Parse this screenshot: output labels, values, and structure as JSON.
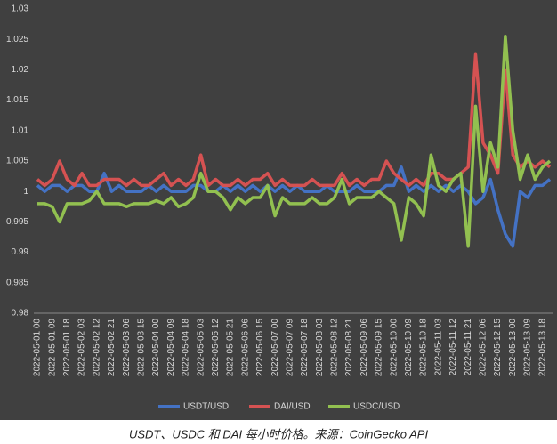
{
  "chart_data": {
    "type": "line",
    "caption": "USDT、USDC 和 DAI 每小时价格。来源：CoinGecko API",
    "categories": [
      "2022-05-01 00",
      null,
      "2022-05-01 09",
      null,
      "2022-05-01 18",
      null,
      "2022-05-02 03",
      null,
      "2022-05-02 12",
      null,
      "2022-05-02 21",
      null,
      "2022-05-03 06",
      null,
      "2022-05-03 15",
      null,
      "2022-05-04 00",
      null,
      "2022-05-04 09",
      null,
      "2022-05-04 18",
      null,
      "2022-05-05 03",
      null,
      "2022-05-05 12",
      null,
      "2022-05-05 21",
      null,
      "2022-05-06 06",
      null,
      "2022-05-06 15",
      null,
      "2022-05-07 00",
      null,
      "2022-05-07 09",
      null,
      "2022-05-07 18",
      null,
      "2022-05-08 03",
      null,
      "2022-05-08 12",
      null,
      "2022-05-08 21",
      null,
      "2022-05-09 06",
      null,
      "2022-05-09 15",
      null,
      "2022-05-10 00",
      null,
      "2022-05-10 09",
      null,
      "2022-05-10 18",
      null,
      "2022-05-11 03",
      null,
      "2022-05-11 12",
      null,
      "2022-05-11 21",
      null,
      "2022-05-12 06",
      null,
      "2022-05-12 15",
      null,
      "2022-05-13 00",
      null,
      "2022-05-13 09",
      null,
      "2022-05-13 18",
      null
    ],
    "series": [
      {
        "name": "USDT/USD",
        "color": "#4472c4",
        "values": [
          1.001,
          1.0,
          1.001,
          1.001,
          1.0,
          1.001,
          1.001,
          1.0,
          1.0,
          1.003,
          1.0,
          1.001,
          1.0,
          1.0,
          1.0,
          1.001,
          1.0,
          1.001,
          1.0,
          1.0,
          1.0,
          1.001,
          1.001,
          1.0,
          1.0,
          1.001,
          1.0,
          1.001,
          1.0,
          1.001,
          1.0,
          1.001,
          1.0,
          1.001,
          1.0,
          1.001,
          1.0,
          1.0,
          1.0,
          1.001,
          1.0,
          1.0,
          1.0,
          1.001,
          1.0,
          1.0,
          1.0,
          1.001,
          1.001,
          1.004,
          1.0,
          1.001,
          1.0,
          1.001,
          1.0,
          1.001,
          1.0,
          1.001,
          1.0,
          0.998,
          0.999,
          1.002,
          0.997,
          0.993,
          0.991,
          1.0,
          0.999,
          1.001,
          1.001,
          1.002
        ]
      },
      {
        "name": "DAI/USD",
        "color": "#d55252",
        "values": [
          1.002,
          1.001,
          1.002,
          1.005,
          1.002,
          1.001,
          1.003,
          1.001,
          1.001,
          1.002,
          1.002,
          1.002,
          1.001,
          1.002,
          1.001,
          1.001,
          1.002,
          1.003,
          1.001,
          1.002,
          1.001,
          1.002,
          1.006,
          1.001,
          1.002,
          1.001,
          1.001,
          1.002,
          1.001,
          1.002,
          1.002,
          1.003,
          1.001,
          1.002,
          1.001,
          1.001,
          1.001,
          1.002,
          1.001,
          1.001,
          1.001,
          1.003,
          1.001,
          1.002,
          1.001,
          1.002,
          1.002,
          1.005,
          1.003,
          1.002,
          1.001,
          1.002,
          1.001,
          1.003,
          1.003,
          1.002,
          1.002,
          1.003,
          1.004,
          1.0225,
          1.008,
          1.006,
          1.003,
          1.02,
          1.006,
          1.004,
          1.005,
          1.004,
          1.005,
          1.004
        ]
      },
      {
        "name": "USDC/USD",
        "color": "#92c050",
        "values": [
          0.998,
          0.998,
          0.9975,
          0.995,
          0.998,
          0.998,
          0.998,
          0.9985,
          1.0,
          0.998,
          0.998,
          0.998,
          0.9975,
          0.998,
          0.998,
          0.998,
          0.9985,
          0.998,
          0.999,
          0.9975,
          0.998,
          0.999,
          1.003,
          1.0,
          1.0,
          0.999,
          0.997,
          0.999,
          0.998,
          0.999,
          0.999,
          1.001,
          0.996,
          0.999,
          0.998,
          0.998,
          0.998,
          0.999,
          0.998,
          0.998,
          0.999,
          1.002,
          0.998,
          0.999,
          0.999,
          0.999,
          1.0,
          0.999,
          0.998,
          0.992,
          0.999,
          0.998,
          0.996,
          1.006,
          1.001,
          1.0,
          1.002,
          1.003,
          0.991,
          1.014,
          1.0,
          1.008,
          1.004,
          1.0255,
          1.01,
          1.002,
          1.006,
          1.002,
          1.004,
          1.005
        ]
      }
    ],
    "ylim": [
      0.98,
      1.03
    ],
    "yticks": [
      0.98,
      0.985,
      0.99,
      0.995,
      1,
      1.005,
      1.01,
      1.015,
      1.02,
      1.025,
      1.03
    ],
    "grid": false
  }
}
